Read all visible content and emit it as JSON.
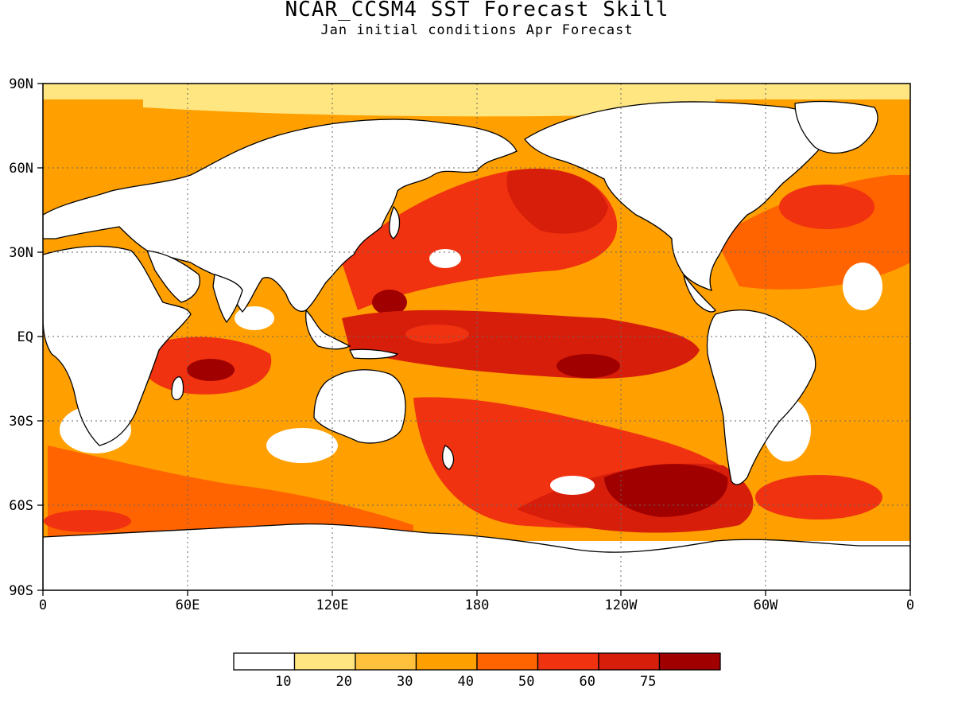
{
  "figure": {
    "title": "NCAR_CCSM4 SST Forecast Skill",
    "subtitle": "Jan initial conditions  Apr Forecast"
  },
  "axes": {
    "lat_labels": [
      "90N",
      "60N",
      "30N",
      "EQ",
      "30S",
      "60S",
      "90S"
    ],
    "lon_labels": [
      "0",
      "60E",
      "120E",
      "180",
      "120W",
      "60W",
      "0"
    ],
    "grid": "dotted",
    "projection": "cylindrical equidistant, 0-360 longitude, 90S-90N latitude"
  },
  "colorbar": {
    "boundaries": [
      "10",
      "20",
      "30",
      "40",
      "50",
      "60",
      "75"
    ],
    "colors": [
      "#ffffff",
      "#ffe680",
      "#ffc03c",
      "#ffa000",
      "#ff6400",
      "#f03210",
      "#d71e0a",
      "#a00000"
    ],
    "placement": "bottom"
  },
  "map": {
    "land_color": "#ffffff",
    "coastline_color": "#000000",
    "ocean_skill_field": "high skill (>60) in tropical Pacific, North Pacific, Southern Ocean south of Pacific; moderate (30-50) in Indian and Atlantic Oceans; low (<10) in some subtropical gyres"
  }
}
